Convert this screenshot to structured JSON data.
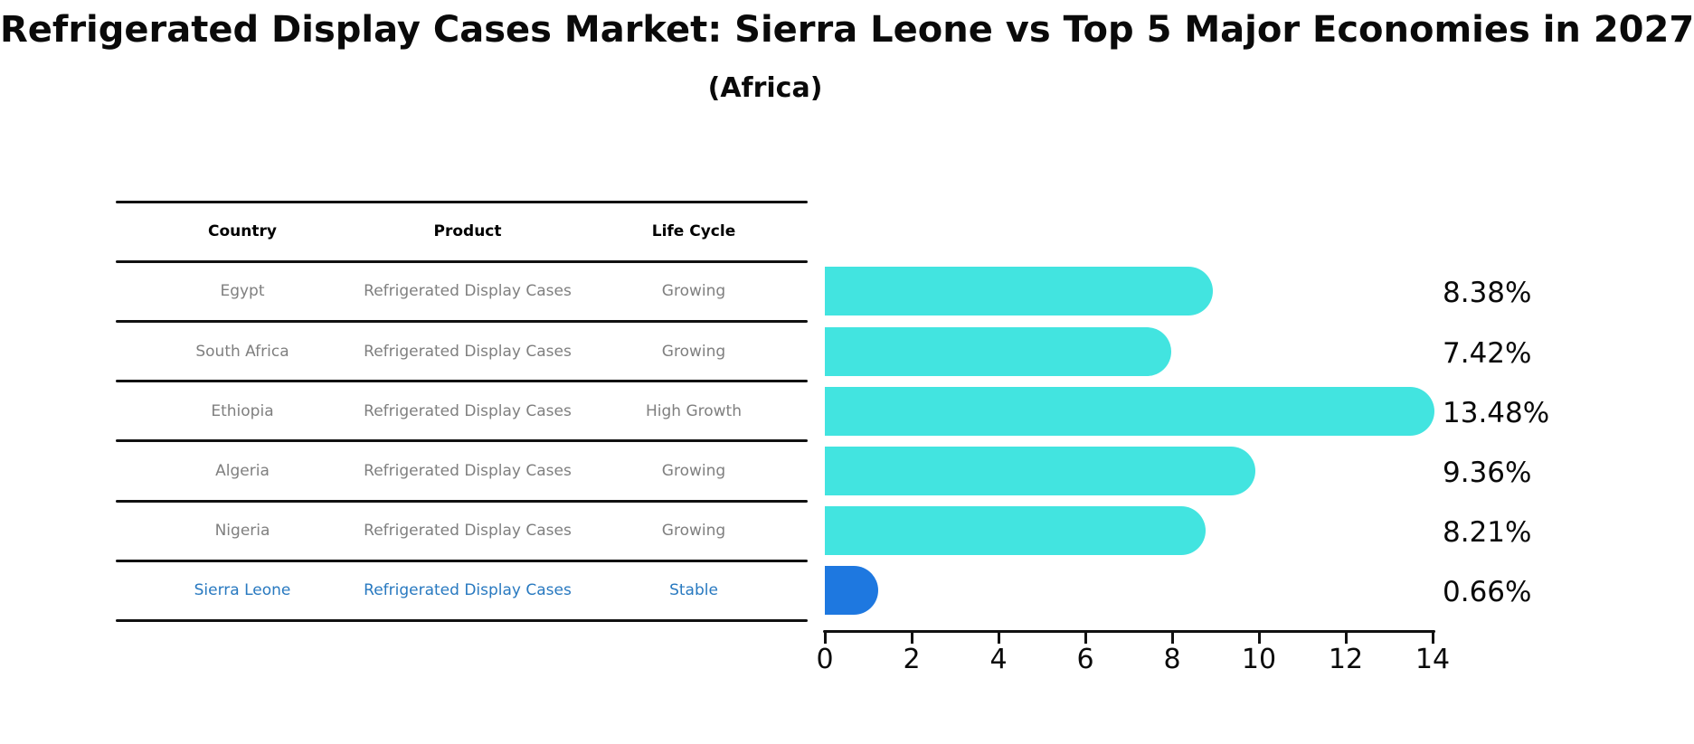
{
  "title": "Refrigerated Display Cases Market: Sierra Leone vs Top 5 Major Economies in 2027",
  "subtitle": "(Africa)",
  "table": {
    "headers": [
      "Country",
      "Product",
      "Life Cycle"
    ],
    "rows": [
      {
        "country": "Egypt",
        "product": "Refrigerated Display Cases",
        "life_cycle": "Growing",
        "highlight": false
      },
      {
        "country": "South Africa",
        "product": "Refrigerated Display Cases",
        "life_cycle": "Growing",
        "highlight": false
      },
      {
        "country": "Ethiopia",
        "product": "Refrigerated Display Cases",
        "life_cycle": "High Growth",
        "highlight": false
      },
      {
        "country": "Algeria",
        "product": "Refrigerated Display Cases",
        "life_cycle": "Growing",
        "highlight": false
      },
      {
        "country": "Nigeria",
        "product": "Refrigerated Display Cases",
        "life_cycle": "Growing",
        "highlight": false
      },
      {
        "country": "Sierra Leone",
        "product": "Refrigerated Display Cases",
        "life_cycle": "Stable",
        "highlight": true
      }
    ]
  },
  "chart_data": {
    "type": "bar",
    "orientation": "horizontal",
    "title": "Refrigerated Display Cases Market: Sierra Leone vs Top 5 Major Economies in 2027",
    "subtitle": "(Africa)",
    "categories": [
      "Egypt",
      "South Africa",
      "Ethiopia",
      "Algeria",
      "Nigeria",
      "Sierra Leone"
    ],
    "values": [
      8.38,
      7.42,
      13.48,
      9.36,
      8.21,
      0.66
    ],
    "value_labels": [
      "8.38%",
      "7.42%",
      "13.48%",
      "9.36%",
      "8.21%",
      "0.66%"
    ],
    "highlight_category": "Sierra Leone",
    "xlim": [
      0,
      14
    ],
    "xticks": [
      0,
      2,
      4,
      6,
      8,
      10,
      12,
      14
    ],
    "grid": false,
    "legend": false
  },
  "colors": {
    "bar": "#42E4E0",
    "highlight_bar": "#1E78E0",
    "row_text": "#7f7f7f",
    "highlight_text": "#2879C0",
    "header_text": "#000000",
    "line": "#111111",
    "title_text": "#0a0a0a",
    "background": "#ffffff"
  }
}
